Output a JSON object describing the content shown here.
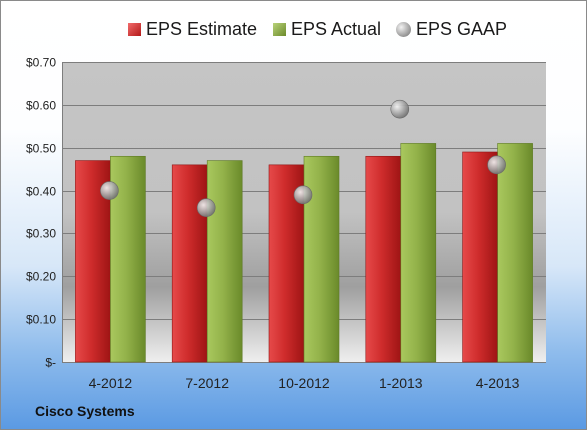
{
  "legend": {
    "estimate": "EPS Estimate",
    "actual": "EPS Actual",
    "gaap": "EPS GAAP"
  },
  "footer": "Cisco Systems",
  "colors": {
    "estimate": "#c0262b",
    "actual": "#8cab42",
    "gaap": "#a8a8a8"
  },
  "chart_data": {
    "type": "bar",
    "categories": [
      "4-2012",
      "7-2012",
      "10-2012",
      "1-2013",
      "4-2013"
    ],
    "series": [
      {
        "name": "EPS Estimate",
        "values": [
          0.47,
          0.46,
          0.46,
          0.48,
          0.49
        ]
      },
      {
        "name": "EPS Actual",
        "values": [
          0.48,
          0.47,
          0.48,
          0.51,
          0.51
        ]
      },
      {
        "name": "EPS GAAP",
        "type": "scatter",
        "values": [
          0.4,
          0.36,
          0.39,
          0.59,
          0.46
        ]
      }
    ],
    "ylim": [
      0,
      0.7
    ],
    "yticks": [
      0,
      0.1,
      0.2,
      0.3,
      0.4,
      0.5,
      0.6,
      0.7
    ],
    "ytick_labels": [
      "$-",
      "$0.10",
      "$0.20",
      "$0.30",
      "$0.40",
      "$0.50",
      "$0.60",
      "$0.70"
    ],
    "grid": true,
    "legend_position": "top"
  }
}
